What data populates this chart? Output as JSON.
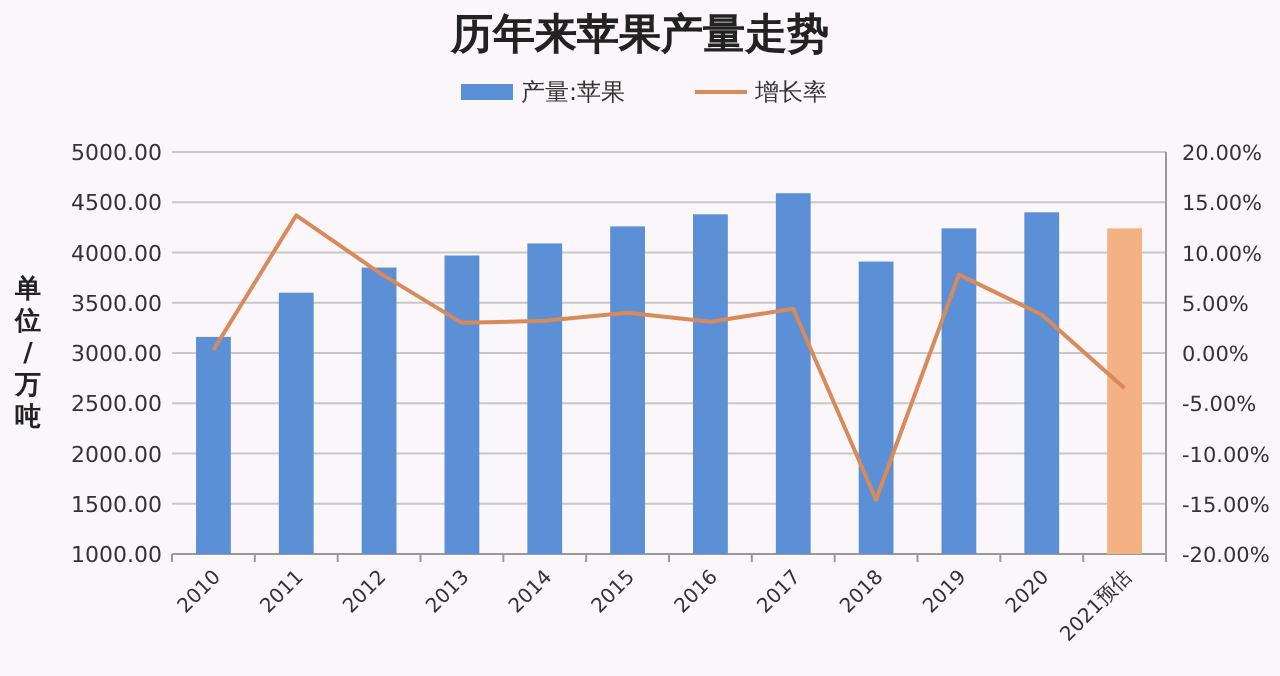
{
  "chart_data": {
    "type": "bar",
    "title": "历年来苹果产量走势",
    "ylabel": "单位/万吨",
    "categories": [
      "2010",
      "2011",
      "2012",
      "2013",
      "2014",
      "2015",
      "2016",
      "2017",
      "2018",
      "2019",
      "2020",
      "2021预估"
    ],
    "series": [
      {
        "name": "产量:苹果",
        "colors": [
          "#5b8fd6",
          "#5b8fd6",
          "#5b8fd6",
          "#5b8fd6",
          "#5b8fd6",
          "#5b8fd6",
          "#5b8fd6",
          "#5b8fd6",
          "#5b8fd6",
          "#5b8fd6",
          "#5b8fd6",
          "#f4b183"
        ],
        "values": [
          3160,
          3600,
          3850,
          3970,
          4090,
          4260,
          4380,
          4590,
          3910,
          4240,
          4400,
          4240
        ]
      },
      {
        "name": "增长率",
        "type": "line",
        "axis": "y2",
        "color": "#d98a5a",
        "values": [
          0.3,
          13.7,
          8.0,
          3.0,
          3.2,
          4.0,
          3.1,
          4.4,
          -14.6,
          7.8,
          3.8,
          -3.5
        ]
      }
    ],
    "ylim": [
      1000,
      5000
    ],
    "yticks": [
      {
        "value": 1000,
        "label": "1000.00"
      },
      {
        "value": 1500,
        "label": "1500.00"
      },
      {
        "value": 2000,
        "label": "2000.00"
      },
      {
        "value": 2500,
        "label": "2500.00"
      },
      {
        "value": 3000,
        "label": "3000.00"
      },
      {
        "value": 3500,
        "label": "3500.00"
      },
      {
        "value": 4000,
        "label": "4000.00"
      },
      {
        "value": 4500,
        "label": "4500.00"
      },
      {
        "value": 5000,
        "label": "5000.00"
      }
    ],
    "y2lim": [
      -20,
      20
    ],
    "y2ticks": [
      {
        "value": -20,
        "label": "-20.00%"
      },
      {
        "value": -15,
        "label": "-15.00%"
      },
      {
        "value": -10,
        "label": "-10.00%"
      },
      {
        "value": -5,
        "label": "-5.00%"
      },
      {
        "value": 0,
        "label": "0.00%"
      },
      {
        "value": 5,
        "label": "5.00%"
      },
      {
        "value": 10,
        "label": "10.00%"
      },
      {
        "value": 15,
        "label": "15.00%"
      },
      {
        "value": 20,
        "label": "20.00%"
      }
    ],
    "grid": "y",
    "legend": "top",
    "marker": "none"
  }
}
